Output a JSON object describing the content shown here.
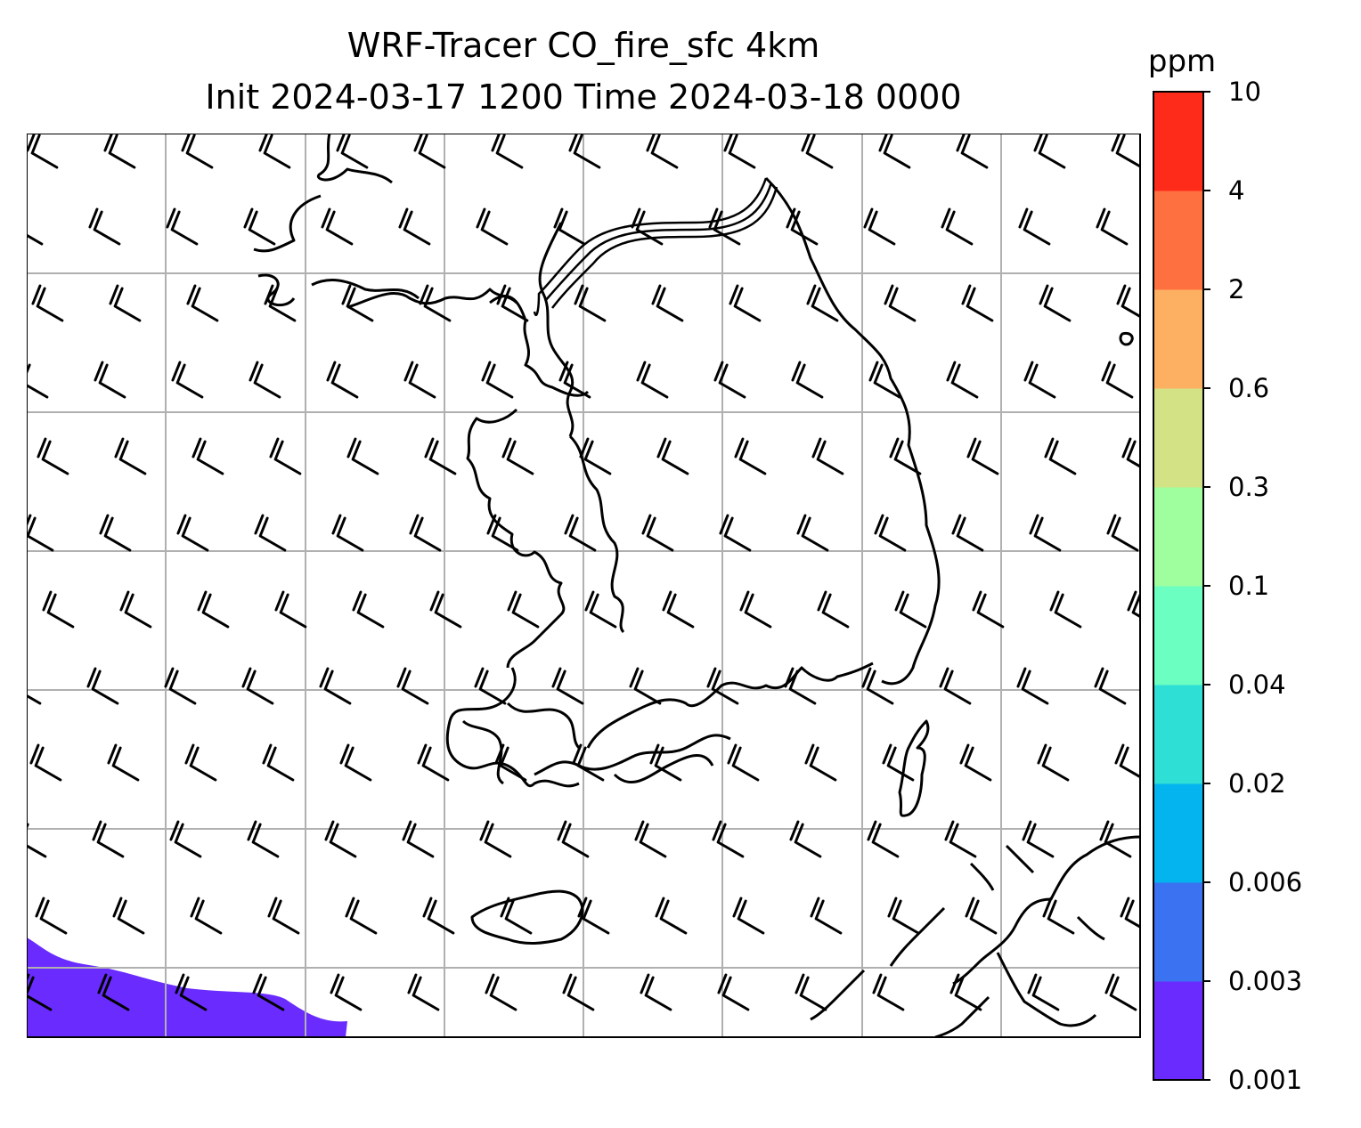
{
  "title": {
    "line1": "WRF-Tracer CO_fire_sfc 4km",
    "line2": "Init 2024-03-17 1200 Time 2024-03-18 0000"
  },
  "colorbar": {
    "unit": "ppm",
    "levels": [
      "0.001",
      "0.003",
      "0.006",
      "0.02",
      "0.04",
      "0.1",
      "0.3",
      "0.6",
      "2",
      "4",
      "10"
    ],
    "colors": [
      "#6a2bff",
      "#3a72f2",
      "#04b4ee",
      "#2edfd6",
      "#6bffc1",
      "#9fff9f",
      "#d2e285",
      "#feb062",
      "#ff7040",
      "#ff2b1a"
    ]
  },
  "map": {
    "gridlines": true,
    "wind_barbs": {
      "direction_deg": 300,
      "barb_type": "two full barbs"
    },
    "tracer_region": {
      "level_bin": "0.001-0.003",
      "color": "#6a2bff"
    }
  }
}
